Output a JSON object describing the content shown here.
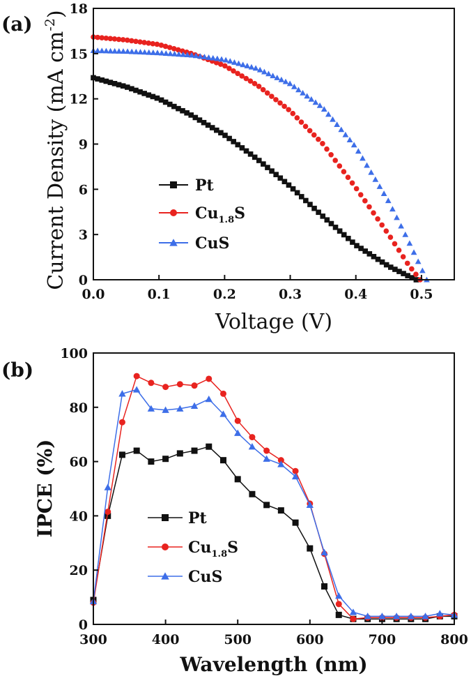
{
  "chart_data": [
    {
      "type": "scatter",
      "panel_label": "(a)",
      "title": "",
      "xlabel": "Voltage (V)",
      "ylabel": "Current Density (mA cm",
      "ylabel_sup": "-2",
      "ylabel_close": ")",
      "xlim": [
        0.0,
        0.55
      ],
      "ylim": [
        0,
        18
      ],
      "xticks": [
        "0.0",
        "0.1",
        "0.2",
        "0.3",
        "0.4",
        "0.5"
      ],
      "xtick_values": [
        0.0,
        0.1,
        0.2,
        0.3,
        0.4,
        0.5
      ],
      "yticks": [
        "0",
        "3",
        "6",
        "9",
        "12",
        "15",
        "18"
      ],
      "ytick_values": [
        0,
        3,
        6,
        9,
        12,
        15,
        18
      ],
      "legend_position": "center-left",
      "series": [
        {
          "name": "Pt",
          "legend_main": "Pt",
          "legend_sub": "",
          "legend_tail": "",
          "marker": "square",
          "color": "#111111",
          "voc": 0.492,
          "x": [
            0.0,
            0.05,
            0.1,
            0.15,
            0.2,
            0.25,
            0.3,
            0.35,
            0.4,
            0.45,
            0.48,
            0.492
          ],
          "y": [
            13.4,
            12.8,
            12.0,
            10.9,
            9.6,
            8.0,
            6.2,
            4.2,
            2.3,
            0.9,
            0.25,
            0.0
          ]
        },
        {
          "name": "Cu1.8S",
          "legend_main": "Cu",
          "legend_sub": "1.8",
          "legend_tail": "S",
          "marker": "circle",
          "color": "#e8231f",
          "voc": 0.498,
          "x": [
            0.0,
            0.05,
            0.1,
            0.15,
            0.2,
            0.25,
            0.3,
            0.35,
            0.4,
            0.45,
            0.48,
            0.498
          ],
          "y": [
            16.1,
            15.9,
            15.6,
            15.0,
            14.2,
            12.9,
            11.2,
            9.0,
            6.1,
            3.0,
            1.0,
            0.0
          ]
        },
        {
          "name": "CuS",
          "legend_main": "CuS",
          "legend_sub": "",
          "legend_tail": "",
          "marker": "triangle",
          "color": "#3d6ee8",
          "voc": 0.508,
          "x": [
            0.0,
            0.05,
            0.1,
            0.15,
            0.2,
            0.25,
            0.3,
            0.35,
            0.4,
            0.45,
            0.48,
            0.508
          ],
          "y": [
            15.2,
            15.15,
            15.05,
            14.9,
            14.6,
            14.0,
            13.0,
            11.4,
            8.8,
            5.2,
            2.6,
            0.0
          ]
        }
      ]
    },
    {
      "type": "line",
      "panel_label": "(b)",
      "title": "",
      "xlabel": "Wavelength (nm)",
      "ylabel": "IPCE (%)",
      "xlim": [
        300,
        800
      ],
      "ylim": [
        0,
        100
      ],
      "xticks": [
        "300",
        "400",
        "500",
        "600",
        "700",
        "800"
      ],
      "xtick_values": [
        300,
        400,
        500,
        600,
        700,
        800
      ],
      "yticks": [
        "0",
        "20",
        "40",
        "60",
        "80",
        "100"
      ],
      "ytick_values": [
        0,
        20,
        40,
        60,
        80,
        100
      ],
      "legend_position": "center",
      "x": [
        300,
        320,
        340,
        360,
        380,
        400,
        420,
        440,
        460,
        480,
        500,
        520,
        540,
        560,
        580,
        600,
        620,
        640,
        660,
        680,
        700,
        720,
        740,
        760,
        780,
        800
      ],
      "series": [
        {
          "name": "Pt",
          "legend_main": "Pt",
          "legend_sub": "",
          "legend_tail": "",
          "marker": "square",
          "color": "#111111",
          "values": [
            9,
            40,
            62.5,
            64,
            60,
            61,
            63,
            64,
            65.5,
            60.5,
            53.5,
            48,
            44,
            42,
            37.5,
            28,
            14,
            3.5,
            2,
            2,
            2,
            2,
            2,
            2,
            3,
            3
          ]
        },
        {
          "name": "Cu1.8S",
          "legend_main": "Cu",
          "legend_sub": "1.8",
          "legend_tail": "S",
          "marker": "circle",
          "color": "#e8231f",
          "values": [
            8,
            41.5,
            74.5,
            91.5,
            89,
            87.5,
            88.5,
            88,
            90.5,
            85,
            75,
            69,
            64,
            60.5,
            56.5,
            44.5,
            26,
            7.5,
            2,
            2.5,
            2.5,
            2.5,
            2.5,
            2.5,
            3,
            3.5
          ]
        },
        {
          "name": "CuS",
          "legend_main": "CuS",
          "legend_sub": "",
          "legend_tail": "",
          "marker": "triangle",
          "color": "#3d6ee8",
          "values": [
            8.5,
            50.5,
            85,
            86.5,
            79.5,
            79,
            79.5,
            80.5,
            83,
            77.5,
            70.5,
            65.5,
            61,
            59,
            54.5,
            44,
            26.5,
            10.5,
            4.5,
            3,
            3,
            3,
            3,
            3,
            4,
            3.5
          ]
        }
      ]
    }
  ]
}
